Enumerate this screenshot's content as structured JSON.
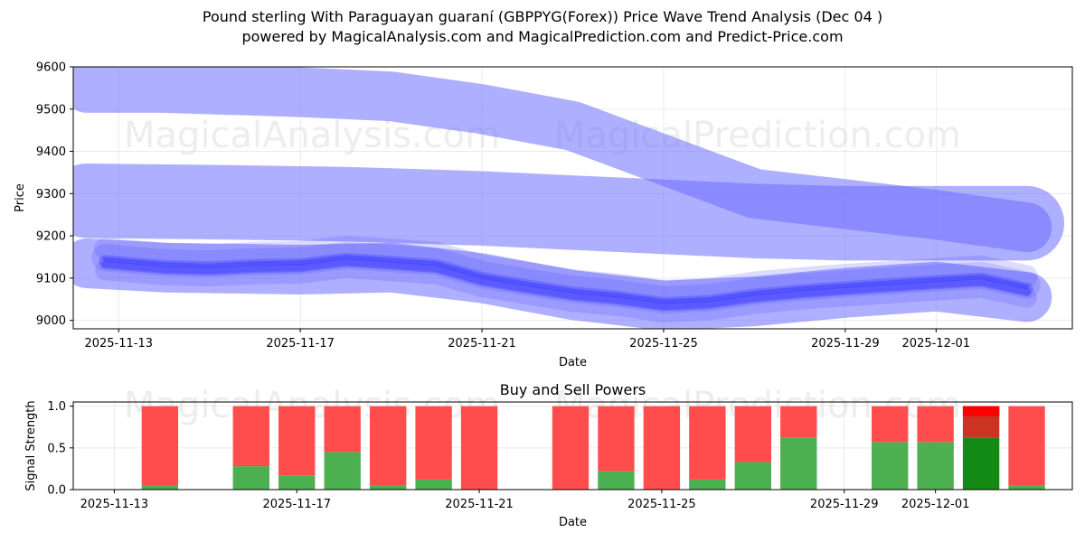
{
  "header": {
    "title_line1": "Pound sterling With Paraguayan guaraní (GBPPYG(Forex)) Price Wave Trend Analysis (Dec 04 )",
    "title_line2": "powered by MagicalAnalysis.com and MagicalPrediction.com and Predict-Price.com"
  },
  "watermarks": [
    "MagicalAnalysis.com",
    "MagicalPrediction.com"
  ],
  "colors": {
    "band": "#6e6eff",
    "buy": "#4caf50",
    "sell": "#ff4d4d",
    "buy_strong": "#138a13",
    "sell_strong": "#cc3322",
    "sell_peak": "#ff0000"
  },
  "chart_data": [
    {
      "type": "area",
      "title": "",
      "xlabel": "Date",
      "ylabel": "Price",
      "ylim": [
        8980,
        9600
      ],
      "xlim": [
        "2025-11-12",
        "2025-12-04"
      ],
      "yticks": [
        9000,
        9100,
        9200,
        9300,
        9400,
        9500,
        9600
      ],
      "xticks": [
        "2025-11-13",
        "2025-11-17",
        "2025-11-21",
        "2025-11-25",
        "2025-11-29",
        "2025-12-01"
      ],
      "grid": true,
      "series": [
        {
          "name": "upper wave band",
          "x": [
            "2025-11-12.3",
            "2025-11-14",
            "2025-11-17",
            "2025-11-19",
            "2025-11-21",
            "2025-11-23",
            "2025-11-25",
            "2025-11-27",
            "2025-11-29",
            "2025-12-01",
            "2025-12-03"
          ],
          "values": [
            9550,
            9550,
            9540,
            9530,
            9500,
            9460,
            9380,
            9300,
            9275,
            9250,
            9220
          ],
          "width": 100
        },
        {
          "name": "middle wave band",
          "x": [
            "2025-11-12.3",
            "2025-11-15",
            "2025-11-18",
            "2025-11-21",
            "2025-11-23",
            "2025-11-25",
            "2025-11-27",
            "2025-11-29",
            "2025-12-01",
            "2025-12-03"
          ],
          "values": [
            9283,
            9280,
            9275,
            9265,
            9255,
            9245,
            9235,
            9230,
            9230,
            9230
          ],
          "width": 150
        },
        {
          "name": "lower wave band",
          "x": [
            "2025-11-12.3",
            "2025-11-14",
            "2025-11-17",
            "2025-11-19",
            "2025-11-21",
            "2025-11-23",
            "2025-11-25",
            "2025-11-27",
            "2025-11-29",
            "2025-12-01",
            "2025-12-03"
          ],
          "values": [
            9135,
            9125,
            9120,
            9125,
            9100,
            9060,
            9035,
            9045,
            9065,
            9080,
            9055
          ],
          "width": 100
        },
        {
          "name": "price trace",
          "x": [
            "2025-11-12.7",
            "2025-11-14",
            "2025-11-15",
            "2025-11-16",
            "2025-11-17",
            "2025-11-18",
            "2025-11-19",
            "2025-11-20",
            "2025-11-21",
            "2025-11-22",
            "2025-11-23",
            "2025-11-24",
            "2025-11-25",
            "2025-11-26",
            "2025-11-27",
            "2025-11-28",
            "2025-11-29",
            "2025-11-30",
            "2025-12-01",
            "2025-12-02",
            "2025-12-03"
          ],
          "values": [
            9140,
            9128,
            9125,
            9130,
            9132,
            9145,
            9138,
            9130,
            9100,
            9082,
            9065,
            9055,
            9040,
            9045,
            9060,
            9070,
            9078,
            9085,
            9092,
            9098,
            9075
          ]
        }
      ]
    },
    {
      "type": "bar",
      "title": "Buy and Sell Powers",
      "xlabel": "Date",
      "ylabel": "Signal Strength",
      "ylim": [
        0,
        1.05
      ],
      "yticks": [
        0.0,
        0.5,
        1.0
      ],
      "xticks": [
        "2025-11-13",
        "2025-11-17",
        "2025-11-21",
        "2025-11-25",
        "2025-11-29",
        "2025-12-01"
      ],
      "grid": true,
      "categories": [
        "2025-11-14",
        "2025-11-16",
        "2025-11-17",
        "2025-11-18",
        "2025-11-19",
        "2025-11-20",
        "2025-11-21",
        "2025-11-23",
        "2025-11-24",
        "2025-11-25",
        "2025-11-26",
        "2025-11-27",
        "2025-11-28",
        "2025-11-30",
        "2025-12-01",
        "2025-12-02",
        "2025-12-03"
      ],
      "series": [
        {
          "name": "Buy",
          "values": [
            0.05,
            0.28,
            0.17,
            0.45,
            0.05,
            0.12,
            0.0,
            0.0,
            0.22,
            0.0,
            0.12,
            0.33,
            0.62,
            0.57,
            0.57,
            0.62,
            0.05
          ]
        },
        {
          "name": "Sell",
          "values": [
            0.95,
            0.72,
            0.83,
            0.55,
            0.95,
            0.88,
            1.0,
            1.0,
            0.78,
            1.0,
            0.88,
            0.67,
            0.38,
            0.43,
            0.43,
            0.38,
            0.95
          ]
        }
      ]
    }
  ]
}
